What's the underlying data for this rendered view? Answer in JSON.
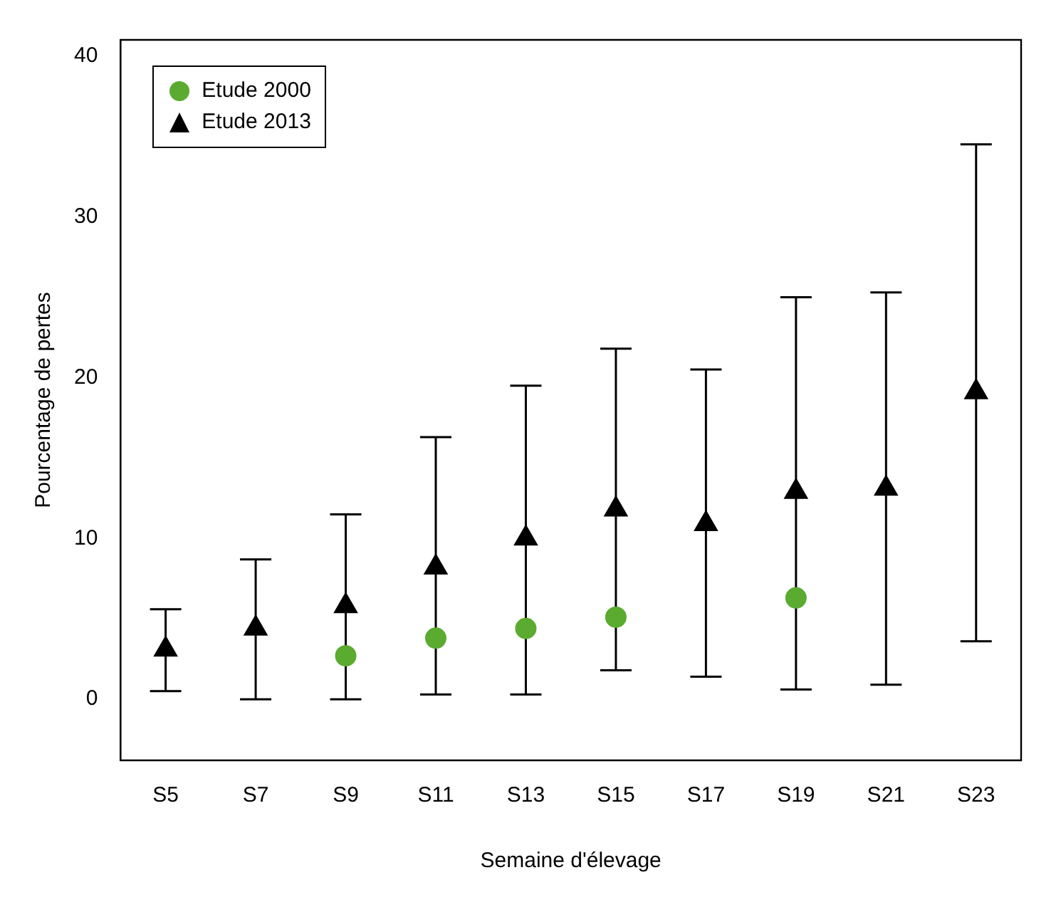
{
  "chart_data": {
    "type": "scatter",
    "xlabel": "Semaine d'élevage",
    "ylabel": "Pourcentage de pertes",
    "categories": [
      "S5",
      "S7",
      "S9",
      "S11",
      "S13",
      "S15",
      "S17",
      "S19",
      "S21",
      "S23"
    ],
    "ylim": [
      -3.8,
      41
    ],
    "yticks": [
      0,
      10,
      20,
      30,
      40
    ],
    "grid": false,
    "legend": "top left",
    "series": [
      {
        "name": "Etude 2000",
        "color": "#5aab2f",
        "marker": "circle",
        "values": [
          null,
          null,
          2.7,
          3.8,
          4.4,
          5.1,
          null,
          6.3,
          null,
          null
        ]
      },
      {
        "name": "Etude 2013",
        "color": "#000000",
        "marker": "triangle",
        "values": [
          3.1,
          4.4,
          5.8,
          8.2,
          10.0,
          11.8,
          10.9,
          12.9,
          13.1,
          19.1
        ],
        "errors": [
          [
            0.5,
            5.6
          ],
          [
            0,
            8.7
          ],
          [
            0,
            11.5
          ],
          [
            0.3,
            16.3
          ],
          [
            0.3,
            19.5
          ],
          [
            1.8,
            21.8
          ],
          [
            1.4,
            20.5
          ],
          [
            0.6,
            25.0
          ],
          [
            0.9,
            25.3
          ],
          [
            3.6,
            34.5
          ]
        ]
      }
    ]
  }
}
